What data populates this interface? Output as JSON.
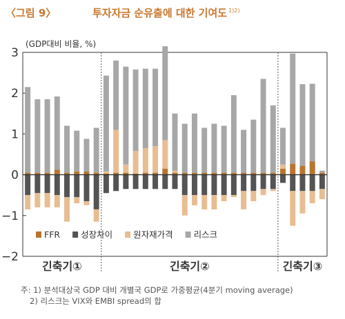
{
  "header": {
    "figure_number": "〈그림 9〉",
    "title": "투자자금 순유출에 대한 기여도",
    "title_superscript": "1)2)"
  },
  "chart_data": {
    "type": "bar",
    "stacked": true,
    "unit_label": "(GDP대비 비율, %)",
    "ylim": [
      -2,
      3
    ],
    "yticks": [
      "3",
      "2",
      "1",
      "0",
      "−1",
      "−2"
    ],
    "ytick_values": [
      3,
      2,
      1,
      0,
      -1,
      -2
    ],
    "grid": false,
    "legend_position": "bottom-left",
    "periods": [
      {
        "label": "긴축기①",
        "count": 8
      },
      {
        "label": "긴축기②",
        "count": 18
      },
      {
        "label": "긴축기③",
        "count": 5
      }
    ],
    "series": [
      {
        "name": "FFR",
        "color": "#b8752f",
        "values": [
          0.05,
          0.05,
          0.05,
          0.12,
          0.05,
          0.08,
          0.08,
          0.05,
          0.03,
          0.05,
          0.05,
          0.03,
          0.05,
          0.05,
          0.15,
          0.05,
          0.05,
          0.05,
          0.05,
          0.05,
          0.05,
          0.05,
          0.05,
          0.05,
          0.05,
          0.05,
          0.15,
          0.27,
          0.22,
          0.33,
          0.05
        ]
      },
      {
        "name": "성장차이",
        "color": "#545454",
        "values": [
          -0.5,
          -0.45,
          -0.45,
          -0.5,
          -0.55,
          -0.55,
          -0.65,
          -0.85,
          -0.45,
          -0.4,
          -0.35,
          -0.35,
          -0.35,
          -0.35,
          -0.35,
          -0.35,
          -0.5,
          -0.5,
          -0.5,
          -0.5,
          -0.5,
          -0.5,
          -0.4,
          -0.4,
          -0.35,
          -0.35,
          -0.2,
          -0.4,
          -0.4,
          -0.4,
          -0.35
        ]
      },
      {
        "name": "원자재가격",
        "color": "#e8bd92",
        "values": [
          -0.35,
          -0.35,
          -0.35,
          -0.3,
          -0.6,
          -0.15,
          -0.1,
          -0.3,
          0.05,
          1.05,
          0.2,
          0.55,
          0.6,
          0.65,
          0.7,
          0.05,
          -0.5,
          -0.25,
          -0.35,
          -0.35,
          -0.15,
          -0.05,
          -0.45,
          -0.25,
          -0.15,
          -0.05,
          0.1,
          -0.85,
          -0.55,
          -0.3,
          -0.25
        ]
      },
      {
        "name": "리스크",
        "color": "#a7a7a7",
        "values": [
          2.1,
          1.8,
          1.8,
          1.8,
          1.15,
          1.0,
          0.8,
          1.1,
          2.35,
          1.7,
          2.4,
          2.0,
          1.95,
          1.9,
          2.3,
          1.4,
          1.2,
          1.45,
          1.1,
          1.2,
          1.15,
          1.9,
          1.05,
          1.3,
          2.3,
          1.65,
          0.9,
          2.7,
          2.0,
          1.9,
          0.05
        ]
      }
    ]
  }
}
